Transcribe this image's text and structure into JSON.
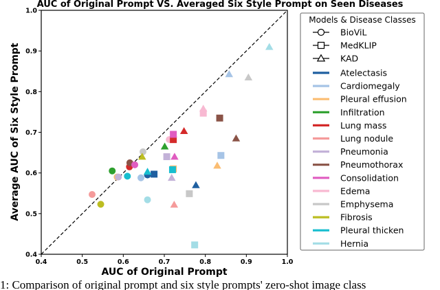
{
  "chart_data": {
    "type": "scatter",
    "title": "AUC of Original Prompt VS. Averaged Six Style Prompt on Seen Diseases",
    "xlabel": "AUC of Original Prompt",
    "ylabel": "Average AUC of Six Style Prompt",
    "xlim": [
      0.4,
      1.0
    ],
    "ylim": [
      0.4,
      1.0
    ],
    "xticks": [
      "0.4",
      "0.5",
      "0.6",
      "0.7",
      "0.8",
      "0.9",
      "1.0"
    ],
    "yticks": [
      "0.4",
      "0.5",
      "0.6",
      "0.7",
      "0.8",
      "0.9",
      "1.0"
    ],
    "diagonal": "dashed y = x",
    "legend": {
      "title": "Models & Disease Classes",
      "placement": "right",
      "models": [
        {
          "name": "BioViL",
          "marker": "circle"
        },
        {
          "name": "MedKLIP",
          "marker": "square"
        },
        {
          "name": "KAD",
          "marker": "triangle"
        }
      ]
    },
    "classes": [
      {
        "name": "Atelectasis",
        "color": "#1f5fa0"
      },
      {
        "name": "Cardiomegaly",
        "color": "#a6c4e6"
      },
      {
        "name": "Pleural effusion",
        "color": "#fbbd72"
      },
      {
        "name": "Infiltration",
        "color": "#2ea02e"
      },
      {
        "name": "Lung mass",
        "color": "#d42a2a"
      },
      {
        "name": "Lung nodule",
        "color": "#f59b9b"
      },
      {
        "name": "Pneumonia",
        "color": "#c3b2d8"
      },
      {
        "name": "Pneumothorax",
        "color": "#8a5347"
      },
      {
        "name": "Consolidation",
        "color": "#e05cc0"
      },
      {
        "name": "Edema",
        "color": "#f8b9d2"
      },
      {
        "name": "Emphysema",
        "color": "#c8c8c8"
      },
      {
        "name": "Fibrosis",
        "color": "#bcbd22"
      },
      {
        "name": "Pleural thicken",
        "color": "#17becf"
      },
      {
        "name": "Hernia",
        "color": "#a3dde6"
      }
    ],
    "points": [
      {
        "model": "BioViL",
        "class": "Atelectasis",
        "x": 0.659,
        "y": 0.595
      },
      {
        "model": "BioViL",
        "class": "Cardiomegaly",
        "x": 0.643,
        "y": 0.588
      },
      {
        "model": "BioViL",
        "class": "Pleural effusion",
        "x": 0.585,
        "y": 0.59
      },
      {
        "model": "BioViL",
        "class": "Infiltration",
        "x": 0.573,
        "y": 0.605
      },
      {
        "model": "BioViL",
        "class": "Lung mass",
        "x": 0.615,
        "y": 0.615
      },
      {
        "model": "BioViL",
        "class": "Lung nodule",
        "x": 0.524,
        "y": 0.547
      },
      {
        "model": "BioViL",
        "class": "Pneumonia",
        "x": 0.588,
        "y": 0.59
      },
      {
        "model": "BioViL",
        "class": "Pneumothorax",
        "x": 0.616,
        "y": 0.625
      },
      {
        "model": "BioViL",
        "class": "Consolidation",
        "x": 0.628,
        "y": 0.62
      },
      {
        "model": "BioViL",
        "class": "Edema",
        "x": 0.712,
        "y": 0.682
      },
      {
        "model": "BioViL",
        "class": "Emphysema",
        "x": 0.648,
        "y": 0.652
      },
      {
        "model": "BioViL",
        "class": "Fibrosis",
        "x": 0.545,
        "y": 0.523
      },
      {
        "model": "BioViL",
        "class": "Pleural thicken",
        "x": 0.61,
        "y": 0.592
      },
      {
        "model": "BioViL",
        "class": "Hernia",
        "x": 0.659,
        "y": 0.534
      },
      {
        "model": "MedKLIP",
        "class": "Atelectasis",
        "x": 0.675,
        "y": 0.597
      },
      {
        "model": "MedKLIP",
        "class": "Cardiomegaly",
        "x": 0.838,
        "y": 0.643
      },
      {
        "model": "MedKLIP",
        "class": "Pleural effusion",
        "x": 0.722,
        "y": 0.61
      },
      {
        "model": "MedKLIP",
        "class": "Lung mass",
        "x": 0.722,
        "y": 0.682
      },
      {
        "model": "MedKLIP",
        "class": "Pneumonia",
        "x": 0.706,
        "y": 0.64
      },
      {
        "model": "MedKLIP",
        "class": "Pneumothorax",
        "x": 0.835,
        "y": 0.735
      },
      {
        "model": "MedKLIP",
        "class": "Consolidation",
        "x": 0.722,
        "y": 0.695
      },
      {
        "model": "MedKLIP",
        "class": "Edema",
        "x": 0.795,
        "y": 0.747
      },
      {
        "model": "MedKLIP",
        "class": "Emphysema",
        "x": 0.761,
        "y": 0.549
      },
      {
        "model": "MedKLIP",
        "class": "Pleural thicken",
        "x": 0.72,
        "y": 0.608
      },
      {
        "model": "MedKLIP",
        "class": "Hernia",
        "x": 0.774,
        "y": 0.423
      },
      {
        "model": "KAD",
        "class": "Atelectasis",
        "x": 0.777,
        "y": 0.57
      },
      {
        "model": "KAD",
        "class": "Cardiomegaly",
        "x": 0.858,
        "y": 0.843
      },
      {
        "model": "KAD",
        "class": "Pleural effusion",
        "x": 0.829,
        "y": 0.618
      },
      {
        "model": "KAD",
        "class": "Infiltration",
        "x": 0.701,
        "y": 0.665
      },
      {
        "model": "KAD",
        "class": "Lung mass",
        "x": 0.748,
        "y": 0.703
      },
      {
        "model": "KAD",
        "class": "Lung nodule",
        "x": 0.724,
        "y": 0.522
      },
      {
        "model": "KAD",
        "class": "Pneumonia",
        "x": 0.718,
        "y": 0.588
      },
      {
        "model": "KAD",
        "class": "Pneumothorax",
        "x": 0.875,
        "y": 0.685
      },
      {
        "model": "KAD",
        "class": "Consolidation",
        "x": 0.725,
        "y": 0.64
      },
      {
        "model": "KAD",
        "class": "Edema",
        "x": 0.795,
        "y": 0.758
      },
      {
        "model": "KAD",
        "class": "Emphysema",
        "x": 0.905,
        "y": 0.835
      },
      {
        "model": "KAD",
        "class": "Fibrosis",
        "x": 0.646,
        "y": 0.64
      },
      {
        "model": "KAD",
        "class": "Pleural thicken",
        "x": 0.659,
        "y": 0.603
      },
      {
        "model": "KAD",
        "class": "Hernia",
        "x": 0.956,
        "y": 0.91
      }
    ]
  },
  "caption": "1: Comparison of original prompt and six style prompts' zero-shot image class"
}
